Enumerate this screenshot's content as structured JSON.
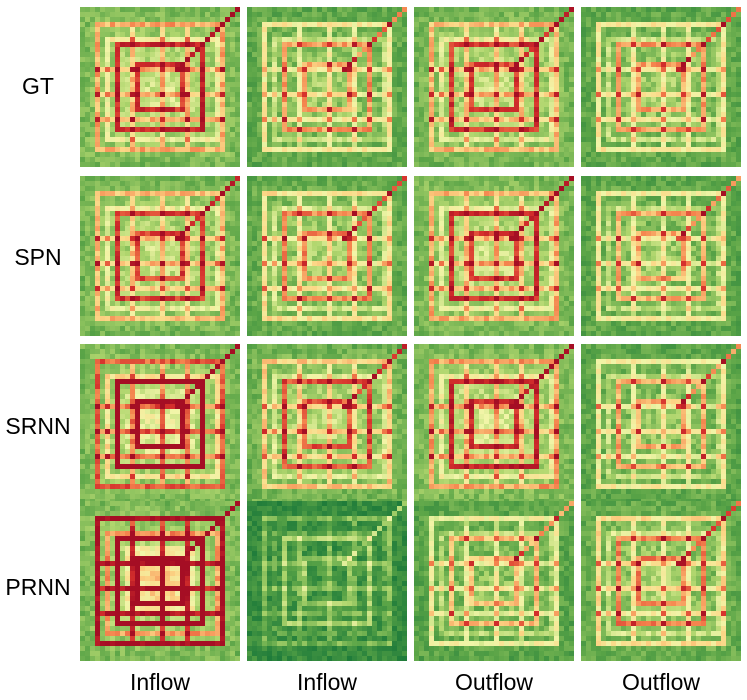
{
  "chart_data": {
    "type": "heatmap",
    "title": "",
    "row_labels": [
      "GT",
      "SPN",
      "SRNN",
      "PRNN"
    ],
    "column_labels": [
      "Inflow",
      "Inflow",
      "Outflow",
      "Outflow"
    ],
    "grid": false,
    "colormap": [
      "#1e7b3a",
      "#5aa447",
      "#b0d66e",
      "#f1f5a8",
      "#fcd686",
      "#f4844e",
      "#d5302c",
      "#a50e24"
    ],
    "panels": [
      {
        "row": "GT",
        "column": "Inflow",
        "intensity": 1.0
      },
      {
        "row": "GT",
        "column": "Inflow",
        "intensity": 0.75
      },
      {
        "row": "GT",
        "column": "Outflow",
        "intensity": 0.95
      },
      {
        "row": "GT",
        "column": "Outflow",
        "intensity": 0.75
      },
      {
        "row": "SPN",
        "column": "Inflow",
        "intensity": 0.95
      },
      {
        "row": "SPN",
        "column": "Inflow",
        "intensity": 0.8
      },
      {
        "row": "SPN",
        "column": "Outflow",
        "intensity": 0.98
      },
      {
        "row": "SPN",
        "column": "Outflow",
        "intensity": 0.72
      },
      {
        "row": "SRNN",
        "column": "Inflow",
        "intensity": 1.2
      },
      {
        "row": "SRNN",
        "column": "Inflow",
        "intensity": 0.9
      },
      {
        "row": "SRNN",
        "column": "Outflow",
        "intensity": 1.02
      },
      {
        "row": "SRNN",
        "column": "Outflow",
        "intensity": 0.72
      },
      {
        "row": "PRNN",
        "column": "Inflow",
        "intensity": 1.55
      },
      {
        "row": "PRNN",
        "column": "Inflow",
        "intensity": 0.3
      },
      {
        "row": "PRNN",
        "column": "Outflow",
        "intensity": 0.68
      },
      {
        "row": "PRNN",
        "column": "Outflow",
        "intensity": 0.8
      }
    ]
  }
}
